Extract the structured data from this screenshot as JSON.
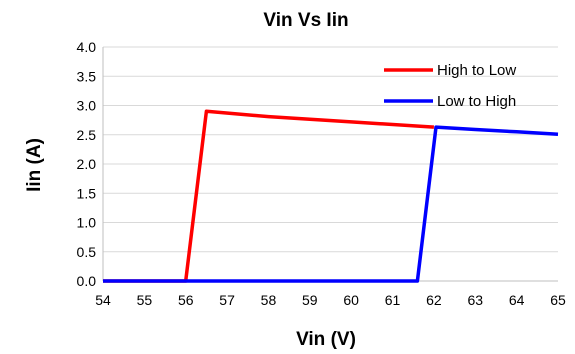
{
  "chart_data": {
    "type": "line",
    "title": "Vin Vs Iin",
    "xlabel": "Vin (V)",
    "ylabel": "Iin (A)",
    "xlim": [
      54,
      65
    ],
    "ylim": [
      0,
      4
    ],
    "x_ticks": [
      "54",
      "55",
      "56",
      "57",
      "58",
      "59",
      "60",
      "61",
      "62",
      "63",
      "64",
      "65"
    ],
    "y_ticks": [
      "0.0",
      "0.5",
      "1.0",
      "1.5",
      "2.0",
      "2.5",
      "3.0",
      "3.5",
      "4.0"
    ],
    "grid": "horizontal",
    "legend_position": "top-right",
    "series": [
      {
        "name": "High to Low",
        "color": "#ff0000",
        "points": [
          {
            "x": 54.0,
            "y": 0.0
          },
          {
            "x": 56.0,
            "y": 0.0
          },
          {
            "x": 56.5,
            "y": 2.9
          },
          {
            "x": 58.0,
            "y": 2.81
          },
          {
            "x": 60.0,
            "y": 2.72
          },
          {
            "x": 62.0,
            "y": 2.63
          }
        ]
      },
      {
        "name": "Low to High",
        "color": "#0000ff",
        "points": [
          {
            "x": 54.0,
            "y": 0.0
          },
          {
            "x": 61.6,
            "y": 0.0
          },
          {
            "x": 62.05,
            "y": 2.63
          },
          {
            "x": 63.0,
            "y": 2.59
          },
          {
            "x": 64.0,
            "y": 2.55
          },
          {
            "x": 65.0,
            "y": 2.51
          }
        ]
      }
    ]
  }
}
